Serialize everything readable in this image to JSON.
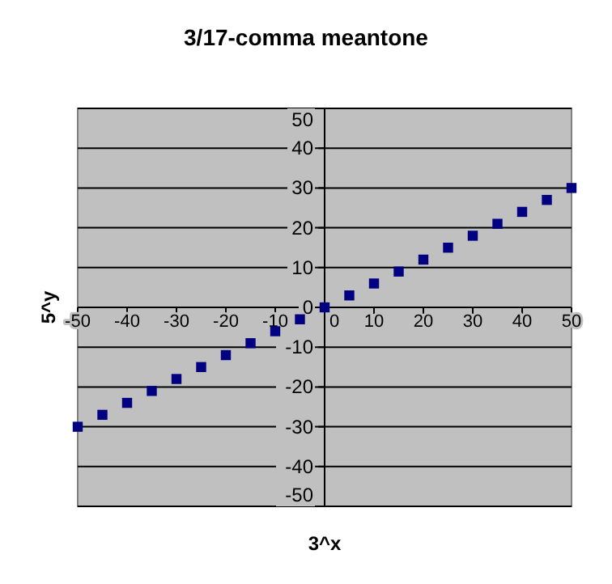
{
  "chart_data": {
    "type": "scatter",
    "title": "3/17-comma meantone",
    "xlabel": "3^x",
    "ylabel": "5^y",
    "x": [
      -50,
      -45,
      -40,
      -35,
      -30,
      -25,
      -20,
      -15,
      -10,
      -5,
      0,
      5,
      10,
      15,
      20,
      25,
      30,
      35,
      40,
      45,
      50
    ],
    "series": [
      {
        "color": "#000080",
        "values": [
          -30,
          -27,
          -24,
          -21,
          -18,
          -15,
          -12,
          -9,
          -6,
          -3,
          0,
          3,
          6,
          9,
          12,
          15,
          18,
          21,
          24,
          27,
          30
        ]
      }
    ],
    "xlim": [
      -50,
      50
    ],
    "ylim": [
      -50,
      50
    ],
    "xticks": [
      -50,
      -40,
      -30,
      -20,
      -10,
      0,
      10,
      20,
      30,
      40,
      50
    ],
    "yticks": [
      -50,
      -40,
      -30,
      -20,
      -10,
      0,
      10,
      20,
      30,
      40,
      50
    ],
    "grid": "y",
    "marker": "square"
  }
}
